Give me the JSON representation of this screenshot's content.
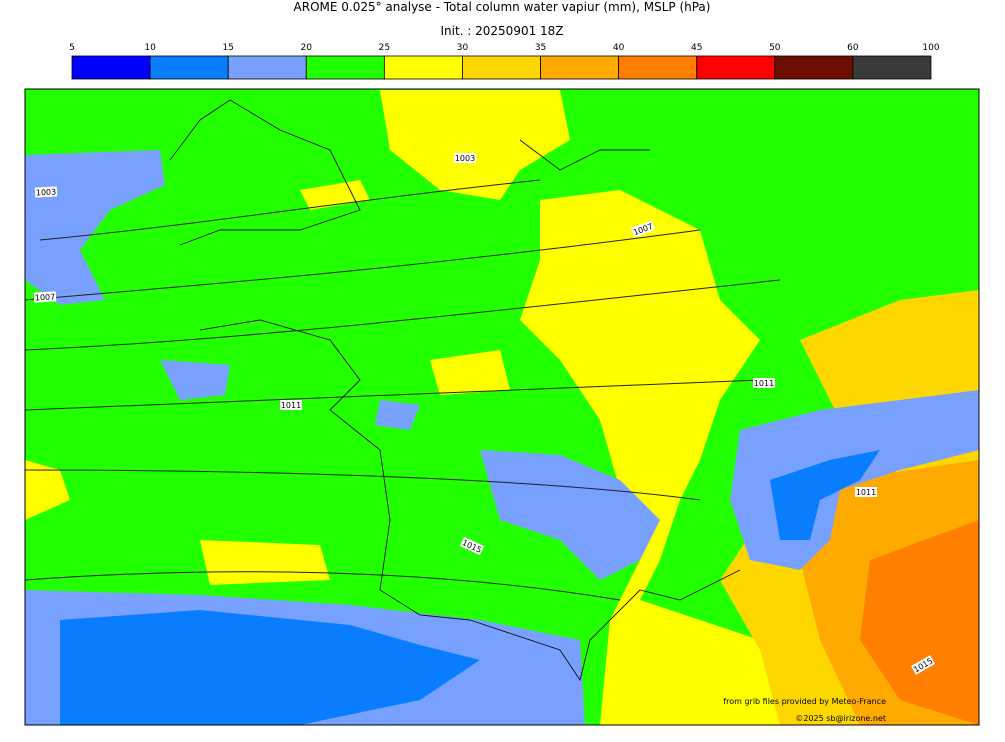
{
  "header": {
    "title": "AROME 0.025° analyse - Total column water vapiur (mm), MSLP (hPa)",
    "init": "Init. : 20250901 18Z"
  },
  "colorbar": {
    "ticks": [
      5,
      10,
      15,
      20,
      25,
      30,
      35,
      40,
      45,
      50,
      60,
      100
    ],
    "colors": [
      "#0000ff",
      "#0a7dff",
      "#78a0ff",
      "#22ff00",
      "#ffff00",
      "#ffd700",
      "#ffaa00",
      "#ff7f00",
      "#ff0000",
      "#6b0d00",
      "#3a3a3a"
    ]
  },
  "isobar_labels": [
    "1003",
    "1003",
    "1007",
    "1007",
    "1011",
    "1011",
    "1015",
    "1011",
    "1015"
  ],
  "credits": {
    "source": "from grib files provided by Meteo-France",
    "copyright": "©2025 sb@irizone.net"
  }
}
